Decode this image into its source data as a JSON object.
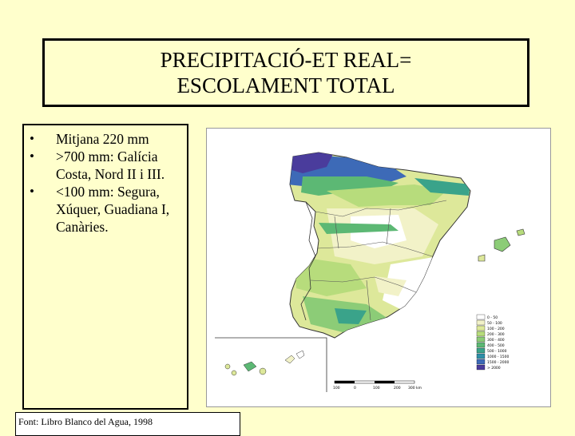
{
  "slide": {
    "title": "PRECIPITACIÓ-ET REAL= ESCOLAMENT TOTAL",
    "bullets": [
      {
        "text": "Mitjana 220 mm"
      },
      {
        "text": ">700 mm: Galícia Costa, Nord II i III."
      },
      {
        "text": "<100 mm: Segura, Xúquer, Guadiana I, Canàries."
      }
    ],
    "bullet_symbol": "•",
    "source": "Font: Libro Blanco del Agua, 1998"
  },
  "map": {
    "legend": [
      {
        "label": "0 - 50",
        "color": "#ffffff"
      },
      {
        "label": "50 - 100",
        "color": "#f2f2c8"
      },
      {
        "label": "100 - 200",
        "color": "#dde89a"
      },
      {
        "label": "200 - 300",
        "color": "#b7dc7c"
      },
      {
        "label": "300 - 400",
        "color": "#8ccc77"
      },
      {
        "label": "400 - 500",
        "color": "#5cb874"
      },
      {
        "label": "500 - 1000",
        "color": "#3aa38a"
      },
      {
        "label": "1000 - 1500",
        "color": "#2f8fa8"
      },
      {
        "label": "1500 - 2000",
        "color": "#3d6ab7"
      },
      {
        "label": "> 2000",
        "color": "#4a3c9c"
      }
    ],
    "scale_labels": [
      "100",
      "0",
      "100",
      "200",
      "300 km"
    ]
  }
}
